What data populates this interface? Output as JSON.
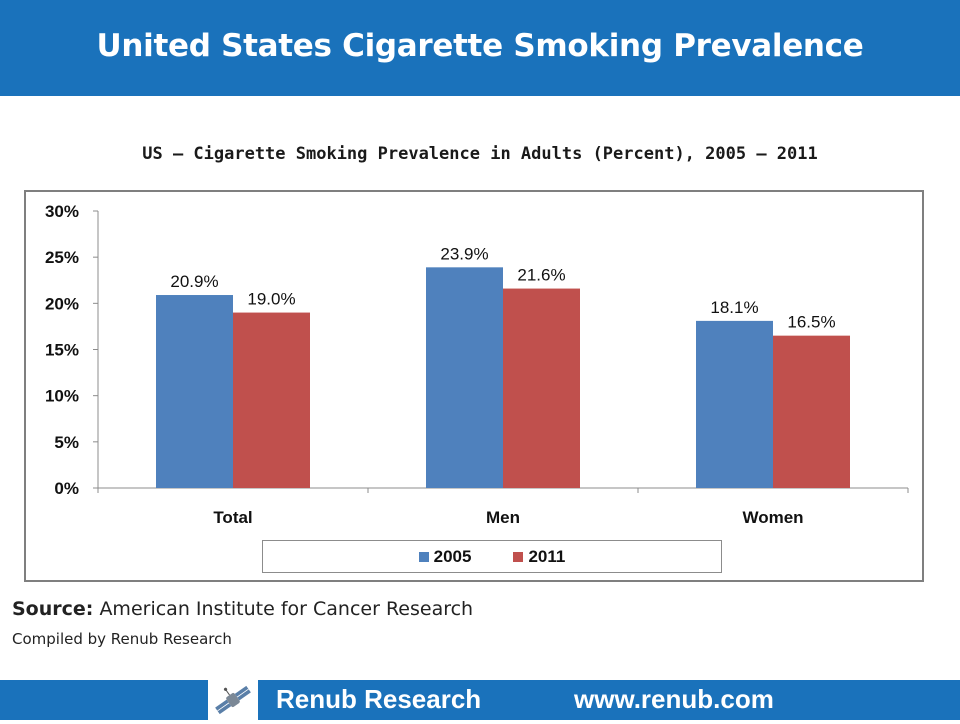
{
  "header": {
    "title": "United States Cigarette Smoking Prevalence"
  },
  "chart_data": {
    "type": "bar",
    "title": "US – Cigarette Smoking Prevalence in Adults (Percent), 2005 – 2011",
    "xlabel": "",
    "ylabel": "",
    "categories": [
      "Total",
      "Men",
      "Women"
    ],
    "series": [
      {
        "name": "2005",
        "values": [
          20.9,
          23.9,
          18.1
        ],
        "color": "#4f81bd"
      },
      {
        "name": "2011",
        "values": [
          19.0,
          21.6,
          16.5
        ],
        "color": "#c0504d"
      }
    ],
    "ylim": [
      0,
      30
    ],
    "yticks": [
      0,
      5,
      10,
      15,
      20,
      25,
      30
    ],
    "ytick_labels": [
      "0%",
      "5%",
      "10%",
      "15%",
      "20%",
      "25%",
      "30%"
    ],
    "data_labels": [
      [
        "20.9%",
        "23.9%",
        "18.1%"
      ],
      [
        "19.0%",
        "21.6%",
        "16.5%"
      ]
    ],
    "grid": false,
    "legend_position": "bottom"
  },
  "source": {
    "label": "Source:",
    "text": "American Institute for Cancer Research",
    "compiled": "Compiled by Renub Research"
  },
  "footer": {
    "brand": "Renub Research",
    "url": "www.renub.com",
    "logo_icon": "satellite-icon"
  },
  "colors": {
    "banner": "#1a72bb",
    "series_2005": "#4f81bd",
    "series_2011": "#c0504d"
  }
}
